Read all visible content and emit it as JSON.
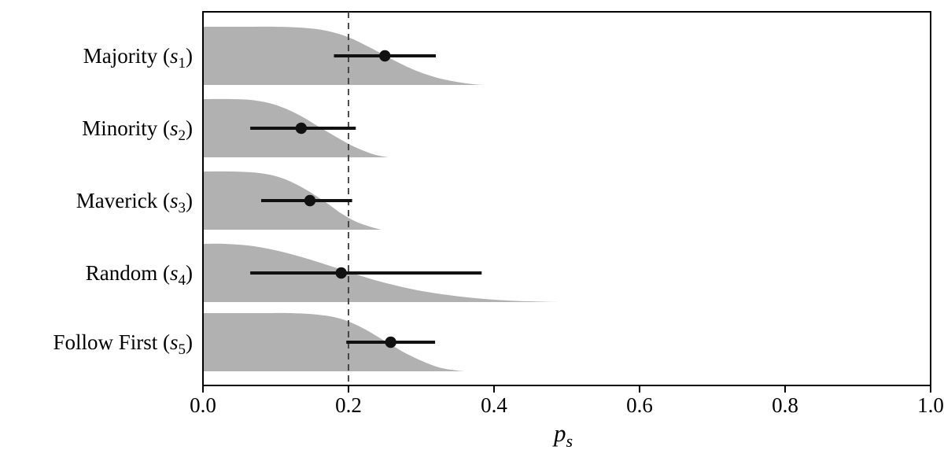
{
  "chart_data": {
    "type": "area",
    "subtype": "ridgeline-with-intervals",
    "title": "",
    "xlabel": "p_s",
    "xlabel_parts": {
      "main": "p",
      "sub": "s"
    },
    "ylabel": "",
    "xlim": [
      0.0,
      1.0
    ],
    "x_ticks": [
      0.0,
      0.2,
      0.4,
      0.6,
      0.8,
      1.0
    ],
    "x_tick_labels": [
      "0.0",
      "0.2",
      "0.4",
      "0.6",
      "0.8",
      "1.0"
    ],
    "grid": false,
    "legend": "none",
    "reference_line_x": 0.2,
    "series": [
      {
        "name": "Majority",
        "symbol": "s",
        "sub": "1",
        "point": 0.25,
        "interval_low": 0.18,
        "interval_high": 0.32,
        "density": [
          [
            0,
            1
          ],
          [
            0.06,
            1
          ],
          [
            0.1,
            1
          ],
          [
            0.14,
            0.98
          ],
          [
            0.17,
            0.93
          ],
          [
            0.2,
            0.82
          ],
          [
            0.23,
            0.64
          ],
          [
            0.26,
            0.44
          ],
          [
            0.29,
            0.26
          ],
          [
            0.32,
            0.13
          ],
          [
            0.35,
            0.05
          ],
          [
            0.37,
            0.015
          ],
          [
            0.385,
            0
          ]
        ]
      },
      {
        "name": "Minority",
        "symbol": "s",
        "sub": "2",
        "point": 0.135,
        "interval_low": 0.065,
        "interval_high": 0.21,
        "density": [
          [
            0,
            1
          ],
          [
            0.04,
            1
          ],
          [
            0.07,
            0.98
          ],
          [
            0.1,
            0.9
          ],
          [
            0.13,
            0.74
          ],
          [
            0.16,
            0.52
          ],
          [
            0.19,
            0.3
          ],
          [
            0.21,
            0.17
          ],
          [
            0.23,
            0.07
          ],
          [
            0.245,
            0.02
          ],
          [
            0.255,
            0
          ]
        ]
      },
      {
        "name": "Maverick",
        "symbol": "s",
        "sub": "3",
        "point": 0.147,
        "interval_low": 0.08,
        "interval_high": 0.205,
        "density": [
          [
            0,
            1
          ],
          [
            0.04,
            1
          ],
          [
            0.08,
            0.97
          ],
          [
            0.11,
            0.88
          ],
          [
            0.14,
            0.7
          ],
          [
            0.17,
            0.46
          ],
          [
            0.19,
            0.28
          ],
          [
            0.21,
            0.14
          ],
          [
            0.23,
            0.05
          ],
          [
            0.245,
            0
          ]
        ]
      },
      {
        "name": "Random",
        "symbol": "s",
        "sub": "4",
        "point": 0.19,
        "interval_low": 0.065,
        "interval_high": 0.383,
        "density": [
          [
            0,
            1
          ],
          [
            0.03,
            1
          ],
          [
            0.07,
            0.96
          ],
          [
            0.11,
            0.86
          ],
          [
            0.15,
            0.72
          ],
          [
            0.19,
            0.56
          ],
          [
            0.23,
            0.4
          ],
          [
            0.27,
            0.27
          ],
          [
            0.31,
            0.17
          ],
          [
            0.35,
            0.1
          ],
          [
            0.39,
            0.05
          ],
          [
            0.43,
            0.02
          ],
          [
            0.47,
            0.005
          ],
          [
            0.49,
            0
          ]
        ]
      },
      {
        "name": "Follow First",
        "symbol": "s",
        "sub": "5",
        "point": 0.258,
        "interval_low": 0.197,
        "interval_high": 0.319,
        "density": [
          [
            0,
            1
          ],
          [
            0.08,
            1
          ],
          [
            0.12,
            1
          ],
          [
            0.16,
            0.97
          ],
          [
            0.19,
            0.9
          ],
          [
            0.22,
            0.74
          ],
          [
            0.25,
            0.52
          ],
          [
            0.28,
            0.3
          ],
          [
            0.31,
            0.13
          ],
          [
            0.33,
            0.05
          ],
          [
            0.35,
            0.012
          ],
          [
            0.36,
            0
          ]
        ]
      }
    ],
    "colors": {
      "density_fill": "#b1b1b1",
      "point": "#111111",
      "interval": "#111111",
      "axis": "#000000",
      "reference_line": "#3a3a3a",
      "background": "#ffffff"
    }
  }
}
